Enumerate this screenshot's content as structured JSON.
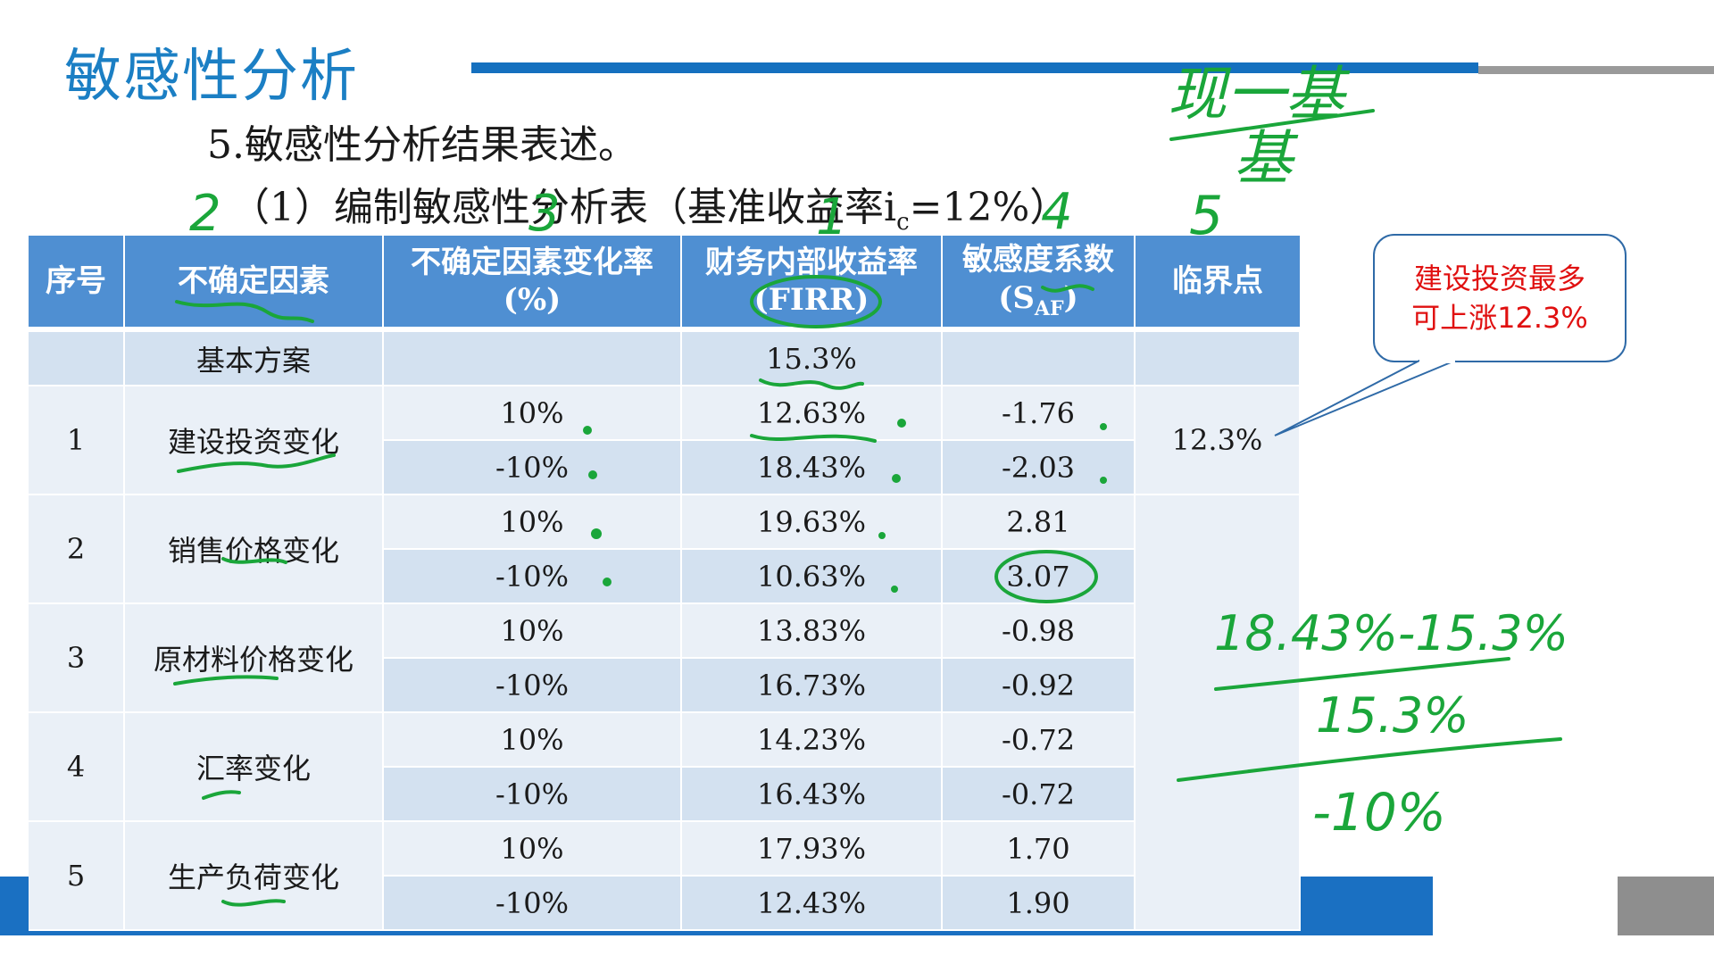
{
  "slide": {
    "title": "敏感性分析",
    "subtitle": "5.敏感性分析结果表述。",
    "table_caption_prefix": "（1）编制敏感性分析表（基准收益率i",
    "table_caption_sub": "c",
    "table_caption_suffix": "=12%）"
  },
  "table": {
    "headers": {
      "index": "序号",
      "factor": "不确定因素",
      "change_rate_line1": "不确定因素变化率",
      "change_rate_line2": "(%)",
      "firr_line1": "财务内部收益率",
      "firr_line2": "(FIRR)",
      "sensitivity_line1": "敏感度系数",
      "sensitivity_line2_main": "(S",
      "sensitivity_line2_sub": "AF",
      "sensitivity_line2_end": ")",
      "critical": "临界点"
    },
    "base": {
      "label": "基本方案",
      "firr": "15.3%"
    },
    "groups": [
      {
        "index": "1",
        "factor": "建设投资变化",
        "critical": "12.3%",
        "rows": [
          {
            "change": "10%",
            "firr": "12.63%",
            "saf": "-1.76"
          },
          {
            "change": "-10%",
            "firr": "18.43%",
            "saf": "-2.03"
          }
        ]
      },
      {
        "index": "2",
        "factor": "销售价格变化",
        "critical": "",
        "rows": [
          {
            "change": "10%",
            "firr": "19.63%",
            "saf": "2.81"
          },
          {
            "change": "-10%",
            "firr": "10.63%",
            "saf": "3.07"
          }
        ]
      },
      {
        "index": "3",
        "factor": "原材料价格变化",
        "critical": "",
        "rows": [
          {
            "change": "10%",
            "firr": "13.83%",
            "saf": "-0.98"
          },
          {
            "change": "-10%",
            "firr": "16.73%",
            "saf": "-0.92"
          }
        ]
      },
      {
        "index": "4",
        "factor": "汇率变化",
        "critical": "",
        "rows": [
          {
            "change": "10%",
            "firr": "14.23%",
            "saf": "-0.72"
          },
          {
            "change": "-10%",
            "firr": "16.43%",
            "saf": "-0.72"
          }
        ]
      },
      {
        "index": "5",
        "factor": "生产负荷变化",
        "critical": "",
        "rows": [
          {
            "change": "10%",
            "firr": "17.93%",
            "saf": "1.70"
          },
          {
            "change": "-10%",
            "firr": "12.43%",
            "saf": "1.90"
          }
        ]
      }
    ]
  },
  "callout": {
    "line1": "建设投资最多",
    "line2": "可上涨12.3%"
  },
  "annotations": {
    "top_right_numerator": "现一基",
    "top_right_denominator": "基",
    "formula_numerator": "18.43%-15.3%",
    "formula_denominator": "15.3%",
    "formula_divisor": "-10%",
    "header_marks": [
      "2",
      "3",
      "1",
      "4",
      "5"
    ]
  },
  "colors": {
    "title_blue": "#1b7fc4",
    "header_blue": "#4f8fd2",
    "row_light": "#eaf0f7",
    "row_dark": "#d3e1f0",
    "callout_red": "#e01010",
    "ink_green": "#1aa63a"
  }
}
